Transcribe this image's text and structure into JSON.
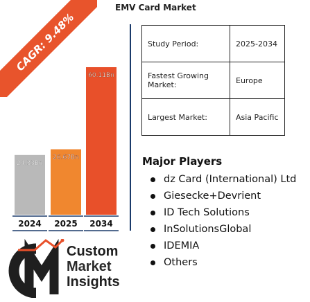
{
  "title": "EMV Card Market",
  "cagr_label": "CAGR: 9.48%",
  "info_table": [
    {
      "key": "Study Period:",
      "value": "2025-2034"
    },
    {
      "key": "Fastest Growing Market:",
      "value": "Europe"
    },
    {
      "key": "Largest Market:",
      "value": "Asia Pacific"
    }
  ],
  "players": {
    "title": "Major Players",
    "items": [
      "dz Card (International) Ltd",
      "Giesecke+Devrient",
      "ID Tech Solutions",
      "InSolutionsGlobal",
      "IDEMIA",
      "Others"
    ]
  },
  "logo": {
    "line1": "Custom",
    "line2": "Market",
    "line3": "Insights"
  },
  "chart_data": {
    "type": "bar",
    "categories": [
      "2024",
      "2025",
      "2034"
    ],
    "values": [
      24.33,
      26.67,
      60.11
    ],
    "value_labels": [
      "24.33Bn",
      "26.67Bn",
      "60.11Bn"
    ],
    "colors": [
      "#b9b9b9",
      "#f0872f",
      "#e8502a"
    ],
    "ylim": [
      0,
      60.11
    ]
  }
}
